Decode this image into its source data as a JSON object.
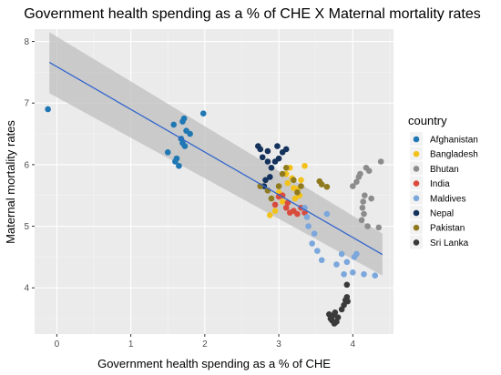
{
  "chart_data": {
    "type": "scatter",
    "title": "Government health spending as a % of CHE X Maternal mortality rates",
    "xlabel": "Government health spending as a % of CHE",
    "ylabel": "Maternal mortality rates",
    "xlim": [
      -0.3,
      4.55
    ],
    "ylim": [
      3.25,
      8.2
    ],
    "x_ticks": [
      0,
      1,
      2,
      3,
      4
    ],
    "y_ticks": [
      4,
      5,
      6,
      7,
      8
    ],
    "grid": true,
    "background": "#ebebeb",
    "legend": {
      "title": "country",
      "placement": "right"
    },
    "trend": {
      "type": "linear",
      "x": [
        -0.1,
        4.4
      ],
      "y": [
        7.66,
        4.54
      ],
      "band_upper": [
        8.15,
        4.88
      ],
      "band_lower": [
        7.16,
        4.2
      ],
      "color": "#3366cc",
      "band_color": "#bfbfbf"
    },
    "series": [
      {
        "name": "Afghanistan",
        "color": "#1f77b4",
        "points": [
          [
            -0.12,
            6.9
          ],
          [
            1.5,
            6.2
          ],
          [
            1.58,
            6.65
          ],
          [
            1.6,
            6.05
          ],
          [
            1.62,
            6.1
          ],
          [
            1.65,
            5.98
          ],
          [
            1.68,
            6.42
          ],
          [
            1.7,
            6.7
          ],
          [
            1.7,
            6.35
          ],
          [
            1.72,
            6.75
          ],
          [
            1.73,
            6.3
          ],
          [
            1.75,
            6.55
          ],
          [
            1.8,
            6.5
          ],
          [
            1.98,
            6.83
          ]
        ]
      },
      {
        "name": "Bangladesh",
        "color": "#f2c21b",
        "points": [
          [
            2.88,
            5.18
          ],
          [
            2.95,
            5.25
          ],
          [
            3.0,
            5.55
          ],
          [
            3.05,
            5.4
          ],
          [
            3.1,
            5.85
          ],
          [
            3.12,
            5.7
          ],
          [
            3.15,
            5.95
          ],
          [
            3.18,
            5.78
          ],
          [
            3.2,
            5.62
          ],
          [
            3.22,
            5.45
          ],
          [
            3.25,
            5.6
          ],
          [
            3.28,
            5.5
          ],
          [
            3.3,
            5.75
          ],
          [
            3.35,
            5.98
          ]
        ]
      },
      {
        "name": "Bhutan",
        "color": "#8c8c8c",
        "points": [
          [
            4.0,
            5.65
          ],
          [
            4.05,
            5.72
          ],
          [
            4.08,
            5.8
          ],
          [
            4.1,
            5.85
          ],
          [
            4.12,
            5.1
          ],
          [
            4.13,
            5.3
          ],
          [
            4.14,
            5.4
          ],
          [
            4.15,
            5.2
          ],
          [
            4.16,
            5.5
          ],
          [
            4.18,
            5.95
          ],
          [
            4.2,
            5.0
          ],
          [
            4.22,
            5.9
          ],
          [
            4.25,
            5.45
          ],
          [
            4.35,
            4.98
          ],
          [
            4.38,
            6.05
          ]
        ]
      },
      {
        "name": "India",
        "color": "#d94c3d",
        "points": [
          [
            2.95,
            5.35
          ],
          [
            3.0,
            5.48
          ],
          [
            3.05,
            5.5
          ],
          [
            3.1,
            5.3
          ],
          [
            3.12,
            5.38
          ],
          [
            3.15,
            5.22
          ],
          [
            3.2,
            5.25
          ],
          [
            3.25,
            5.2
          ],
          [
            3.3,
            5.3
          ],
          [
            3.35,
            5.22
          ]
        ]
      },
      {
        "name": "Maldives",
        "color": "#7ba7dc",
        "points": [
          [
            3.35,
            5.3
          ],
          [
            3.38,
            5.15
          ],
          [
            3.4,
            5.0
          ],
          [
            3.45,
            4.72
          ],
          [
            3.48,
            4.88
          ],
          [
            3.52,
            4.6
          ],
          [
            3.58,
            4.45
          ],
          [
            3.65,
            5.2
          ],
          [
            3.78,
            4.38
          ],
          [
            3.85,
            4.55
          ],
          [
            3.88,
            4.22
          ],
          [
            3.92,
            4.42
          ],
          [
            4.0,
            4.25
          ],
          [
            4.02,
            4.5
          ],
          [
            4.05,
            4.55
          ],
          [
            4.15,
            4.22
          ],
          [
            4.3,
            4.2
          ]
        ]
      },
      {
        "name": "Nepal",
        "color": "#14325c",
        "points": [
          [
            2.72,
            6.3
          ],
          [
            2.75,
            6.25
          ],
          [
            2.78,
            6.12
          ],
          [
            2.8,
            5.65
          ],
          [
            2.82,
            5.75
          ],
          [
            2.85,
            6.05
          ],
          [
            2.85,
            6.22
          ],
          [
            2.88,
            5.8
          ],
          [
            2.9,
            5.95
          ],
          [
            2.95,
            6.05
          ],
          [
            2.98,
            6.3
          ],
          [
            3.0,
            6.1
          ],
          [
            3.05,
            6.2
          ],
          [
            3.1,
            6.25
          ]
        ]
      },
      {
        "name": "Pakistan",
        "color": "#8f7a1e",
        "points": [
          [
            2.75,
            5.65
          ],
          [
            2.85,
            5.58
          ],
          [
            2.9,
            5.45
          ],
          [
            3.0,
            5.65
          ],
          [
            3.05,
            5.85
          ],
          [
            3.1,
            5.95
          ],
          [
            3.2,
            5.75
          ],
          [
            3.25,
            5.55
          ],
          [
            3.3,
            5.65
          ],
          [
            3.55,
            5.73
          ],
          [
            3.58,
            5.68
          ],
          [
            3.65,
            5.64
          ]
        ]
      },
      {
        "name": "Sri Lanka",
        "color": "#3a3a3a",
        "points": [
          [
            3.68,
            3.57
          ],
          [
            3.7,
            3.5
          ],
          [
            3.72,
            3.47
          ],
          [
            3.73,
            3.55
          ],
          [
            3.75,
            3.42
          ],
          [
            3.76,
            3.6
          ],
          [
            3.78,
            3.45
          ],
          [
            3.8,
            3.52
          ],
          [
            3.85,
            3.65
          ],
          [
            3.88,
            3.72
          ],
          [
            3.9,
            3.8
          ],
          [
            3.92,
            3.85
          ],
          [
            3.92,
            4.05
          ],
          [
            3.93,
            3.78
          ]
        ]
      }
    ]
  }
}
